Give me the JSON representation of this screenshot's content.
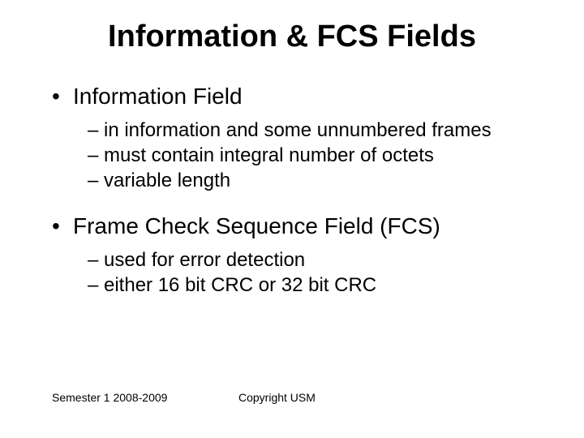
{
  "slide": {
    "title": "Information & FCS Fields",
    "title_fontsize": 38,
    "background_color": "#ffffff",
    "text_color": "#000000",
    "bullets": [
      {
        "text": "Information Field",
        "fontsize": 28,
        "marker": "•",
        "sub": [
          {
            "text": "in information and some unnumbered frames",
            "marker": "–",
            "fontsize": 24
          },
          {
            "text": "must contain integral number of octets",
            "marker": "–",
            "fontsize": 24
          },
          {
            "text": "variable length",
            "marker": "–",
            "fontsize": 24
          }
        ]
      },
      {
        "text": "Frame Check Sequence Field (FCS)",
        "fontsize": 28,
        "marker": "•",
        "sub": [
          {
            "text": "used for error detection",
            "marker": "–",
            "fontsize": 24
          },
          {
            "text": "either 16 bit CRC or 32 bit CRC",
            "marker": "–",
            "fontsize": 24
          }
        ]
      }
    ],
    "footer": {
      "left": "Semester 1 2008-2009",
      "center": "Copyright USM",
      "fontsize": 14
    }
  }
}
